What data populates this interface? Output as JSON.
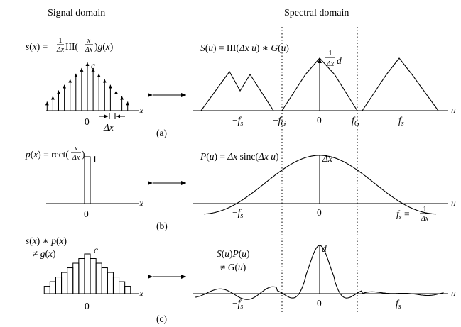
{
  "headers": {
    "signal": "Signal domain",
    "spectral": "Spectral domain"
  },
  "panels": [
    {
      "id": "a",
      "tag": "(a)",
      "signal_formula": "s(x) = 1/Δx III(x/Δx) g(x)",
      "spectral_formula": "S(u) = III(Δx u) ∗ G(u)",
      "signal_labels": {
        "peak": "c",
        "origin": "0",
        "spacing": "Δx",
        "axis": "x"
      },
      "spectral_labels": {
        "peak": "1/Δx d",
        "axis": "u",
        "ticks": [
          "−f_s",
          "−f_G",
          "0",
          "f_G",
          "f_s"
        ]
      }
    },
    {
      "id": "b",
      "tag": "(b)",
      "signal_formula": "p(x) = rect(x/Δx)",
      "spectral_formula": "P(u) = Δx sinc(Δx u)",
      "signal_labels": {
        "height": "1",
        "origin": "0",
        "axis": "x"
      },
      "spectral_labels": {
        "peak": "Δx",
        "axis": "u",
        "ticks": [
          "−f_s",
          "0",
          "f_s = 1/Δx"
        ]
      }
    },
    {
      "id": "c",
      "tag": "(c)",
      "signal_formula": "s(x) ∗ p(x) ≠ g(x)",
      "spectral_formula": "S(u)P(u) ≠ G(u)",
      "signal_labels": {
        "peak": "c",
        "origin": "0",
        "axis": "x"
      },
      "spectral_labels": {
        "peak": "d",
        "axis": "u",
        "ticks": [
          "−f_s",
          "0",
          "f_s"
        ]
      }
    }
  ],
  "arrow_icon": "double-headed-arrow"
}
